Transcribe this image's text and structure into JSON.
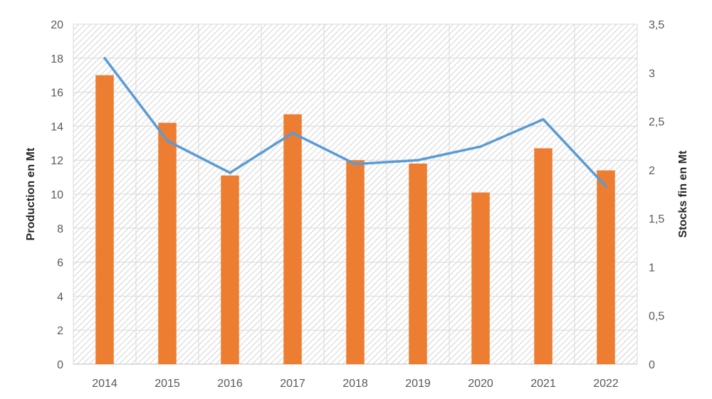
{
  "chart_data": {
    "type": "bar",
    "title": "",
    "categories": [
      "2014",
      "2015",
      "2016",
      "2017",
      "2018",
      "2019",
      "2020",
      "2021",
      "2022"
    ],
    "series": [
      {
        "name": "Production",
        "type": "bar",
        "axis": "left",
        "color": "#ED7D31",
        "values": [
          17.0,
          14.2,
          11.1,
          14.7,
          12.0,
          11.8,
          10.1,
          12.7,
          11.4
        ]
      },
      {
        "name": "Stocks fin",
        "type": "line",
        "axis": "right",
        "color": "#5B9BD5",
        "values": [
          3.15,
          2.3,
          1.97,
          2.38,
          2.06,
          2.1,
          2.24,
          2.52,
          1.83
        ]
      }
    ],
    "ylabel": "Production en Mt",
    "y2label": "Stocks fin en Mt",
    "ylim": [
      0,
      20
    ],
    "y2lim": [
      0,
      3.5
    ],
    "yticks": [
      "0",
      "2",
      "4",
      "6",
      "8",
      "10",
      "12",
      "14",
      "16",
      "18",
      "20"
    ],
    "y2ticks": [
      "0",
      "0,5",
      "1",
      "1,5",
      "2",
      "2,5",
      "3",
      "3,5"
    ],
    "grid": true,
    "legend": "none"
  }
}
